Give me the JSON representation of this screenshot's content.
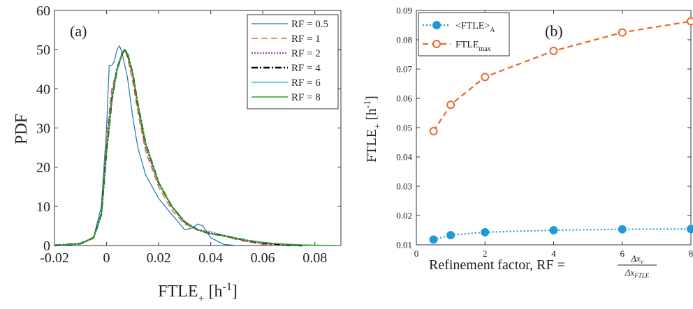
{
  "chart_data": [
    {
      "type": "line",
      "panel_label": "(a)",
      "xlabel": "FTLE",
      "xlabel_sub": "+",
      "xlabel_unit": "[h",
      "xlabel_sup": "-1",
      "xlabel_close": "]",
      "ylabel": "PDF",
      "xlim": [
        -0.02,
        0.09
      ],
      "ylim": [
        0,
        60
      ],
      "xticks": [
        -0.02,
        0,
        0.02,
        0.04,
        0.06,
        0.08
      ],
      "xtick_labels": [
        "-0.02",
        "0",
        "0.02",
        "0.04",
        "0.06",
        "0.08"
      ],
      "yticks": [
        0,
        10,
        20,
        30,
        40,
        50,
        60
      ],
      "ytick_labels": [
        "0",
        "10",
        "20",
        "30",
        "40",
        "50",
        "60"
      ],
      "legend_position": "top-right",
      "series": [
        {
          "name": "RF = 0.5",
          "color": "#1f77b4",
          "dash": "",
          "x": [
            -0.02,
            -0.01,
            -0.005,
            -0.002,
            0,
            0.001,
            0.002,
            0.003,
            0.004,
            0.005,
            0.006,
            0.008,
            0.01,
            0.012,
            0.015,
            0.02,
            0.025,
            0.03,
            0.033,
            0.035,
            0.037,
            0.04,
            0.045,
            0.05
          ],
          "y": [
            0,
            0.5,
            2,
            10,
            30,
            46,
            46,
            47,
            50,
            51,
            49,
            43,
            33,
            25,
            18,
            12,
            8,
            4,
            4.5,
            5.5,
            5,
            2,
            0.3,
            0
          ]
        },
        {
          "name": "RF = 1",
          "color": "#e8692e",
          "dash": "9,5",
          "x": [
            -0.02,
            -0.01,
            -0.005,
            -0.002,
            0,
            0.002,
            0.004,
            0.006,
            0.007,
            0.008,
            0.01,
            0.012,
            0.015,
            0.02,
            0.025,
            0.03,
            0.035,
            0.04,
            0.045,
            0.05,
            0.055,
            0.06,
            0.065
          ],
          "y": [
            0,
            0.5,
            2,
            8,
            28,
            40,
            45,
            49,
            50,
            48,
            42,
            34,
            24,
            15,
            9,
            5.5,
            4,
            3,
            2.5,
            1.5,
            0.8,
            0.3,
            0
          ]
        },
        {
          "name": "RF = 2",
          "color": "#a84fb8",
          "dash": "2,2",
          "x": [
            -0.02,
            -0.01,
            -0.005,
            -0.002,
            0,
            0.002,
            0.004,
            0.006,
            0.007,
            0.008,
            0.01,
            0.012,
            0.015,
            0.02,
            0.025,
            0.03,
            0.035,
            0.04,
            0.045,
            0.05,
            0.055,
            0.06,
            0.065,
            0.07
          ],
          "y": [
            0,
            0.5,
            2,
            8,
            25,
            38,
            45,
            49,
            50,
            49,
            44,
            36,
            25,
            16,
            10,
            6,
            4,
            3.5,
            2.5,
            1.8,
            1,
            0.5,
            0.2,
            0
          ]
        },
        {
          "name": "RF = 4",
          "color": "#000000",
          "dash": "9,3,2,3",
          "x": [
            -0.02,
            -0.01,
            -0.005,
            -0.002,
            0,
            0.002,
            0.004,
            0.006,
            0.007,
            0.008,
            0.01,
            0.012,
            0.015,
            0.02,
            0.025,
            0.03,
            0.035,
            0.04,
            0.045,
            0.05,
            0.055,
            0.06,
            0.065,
            0.07,
            0.075
          ],
          "y": [
            0,
            0.5,
            2,
            8,
            24,
            37,
            45,
            49,
            50,
            49,
            44,
            36,
            26,
            16,
            10,
            6,
            4,
            3,
            2.5,
            1.8,
            1.2,
            0.7,
            0.4,
            0.2,
            0
          ]
        },
        {
          "name": "RF = 6",
          "color": "#17b3c2",
          "dash": "",
          "x": [
            -0.02,
            -0.01,
            -0.005,
            -0.002,
            0,
            0.002,
            0.004,
            0.006,
            0.007,
            0.008,
            0.01,
            0.012,
            0.015,
            0.02,
            0.025,
            0.03,
            0.035,
            0.04,
            0.045,
            0.05,
            0.055,
            0.06,
            0.065,
            0.07,
            0.075,
            0.08
          ],
          "y": [
            0,
            0.5,
            2,
            8,
            24,
            37,
            45,
            49,
            50,
            49,
            44,
            36,
            26,
            16,
            10,
            6,
            4,
            3,
            2.4,
            1.8,
            1.2,
            0.8,
            0.5,
            0.3,
            0.1,
            0
          ]
        },
        {
          "name": "RF = 8",
          "color": "#2ca02c",
          "dash": "",
          "x": [
            -0.02,
            -0.01,
            -0.005,
            -0.002,
            0,
            0.002,
            0.004,
            0.006,
            0.007,
            0.008,
            0.01,
            0.012,
            0.015,
            0.02,
            0.025,
            0.03,
            0.035,
            0.04,
            0.045,
            0.05,
            0.055,
            0.06,
            0.065,
            0.07,
            0.075,
            0.08,
            0.085,
            0.088
          ],
          "y": [
            0,
            0.5,
            2,
            8,
            24,
            37,
            45,
            49,
            50,
            49,
            44,
            36,
            26,
            16,
            10,
            6,
            4,
            3,
            2.4,
            1.8,
            1.2,
            0.8,
            0.5,
            0.3,
            0.15,
            0.08,
            0.03,
            0
          ]
        }
      ]
    },
    {
      "type": "line",
      "panel_label": "(b)",
      "xlabel": "Refinement factor, RF = ",
      "xlabel_num": "Δx",
      "xlabel_num_sub": "v",
      "xlabel_den": "Δx",
      "xlabel_den_sub": "FTLE",
      "ylabel": "FTLE",
      "ylabel_sub": "+",
      "ylabel_unit": "[h",
      "ylabel_sup": "-1",
      "ylabel_close": "]",
      "xlim": [
        0,
        8
      ],
      "ylim": [
        0.01,
        0.09
      ],
      "xticks": [
        0,
        2,
        4,
        6,
        8
      ],
      "xtick_labels": [
        "0",
        "2",
        "4",
        "6",
        "8"
      ],
      "yticks": [
        0.01,
        0.02,
        0.03,
        0.04,
        0.05,
        0.06,
        0.07,
        0.08,
        0.09
      ],
      "ytick_labels": [
        "0.01",
        "0.02",
        "0.03",
        "0.04",
        "0.05",
        "0.06",
        "0.07",
        "0.08",
        "0.09"
      ],
      "legend_position": "top-left",
      "series": [
        {
          "name": "<FTLE>",
          "name_sub": "A",
          "color": "#1f9ad6",
          "dash": "2,3",
          "marker": "filled-circle",
          "x": [
            0.5,
            1,
            2,
            4,
            6,
            8
          ],
          "y": [
            0.0118,
            0.0133,
            0.0143,
            0.015,
            0.0153,
            0.0154
          ]
        },
        {
          "name": "FTLE",
          "name_sub": "max",
          "color": "#e8692e",
          "dash": "8,5",
          "marker": "open-circle",
          "x": [
            0.5,
            1,
            2,
            4,
            6,
            8
          ],
          "y": [
            0.0488,
            0.0578,
            0.0673,
            0.0762,
            0.0825,
            0.0863
          ]
        }
      ]
    }
  ]
}
